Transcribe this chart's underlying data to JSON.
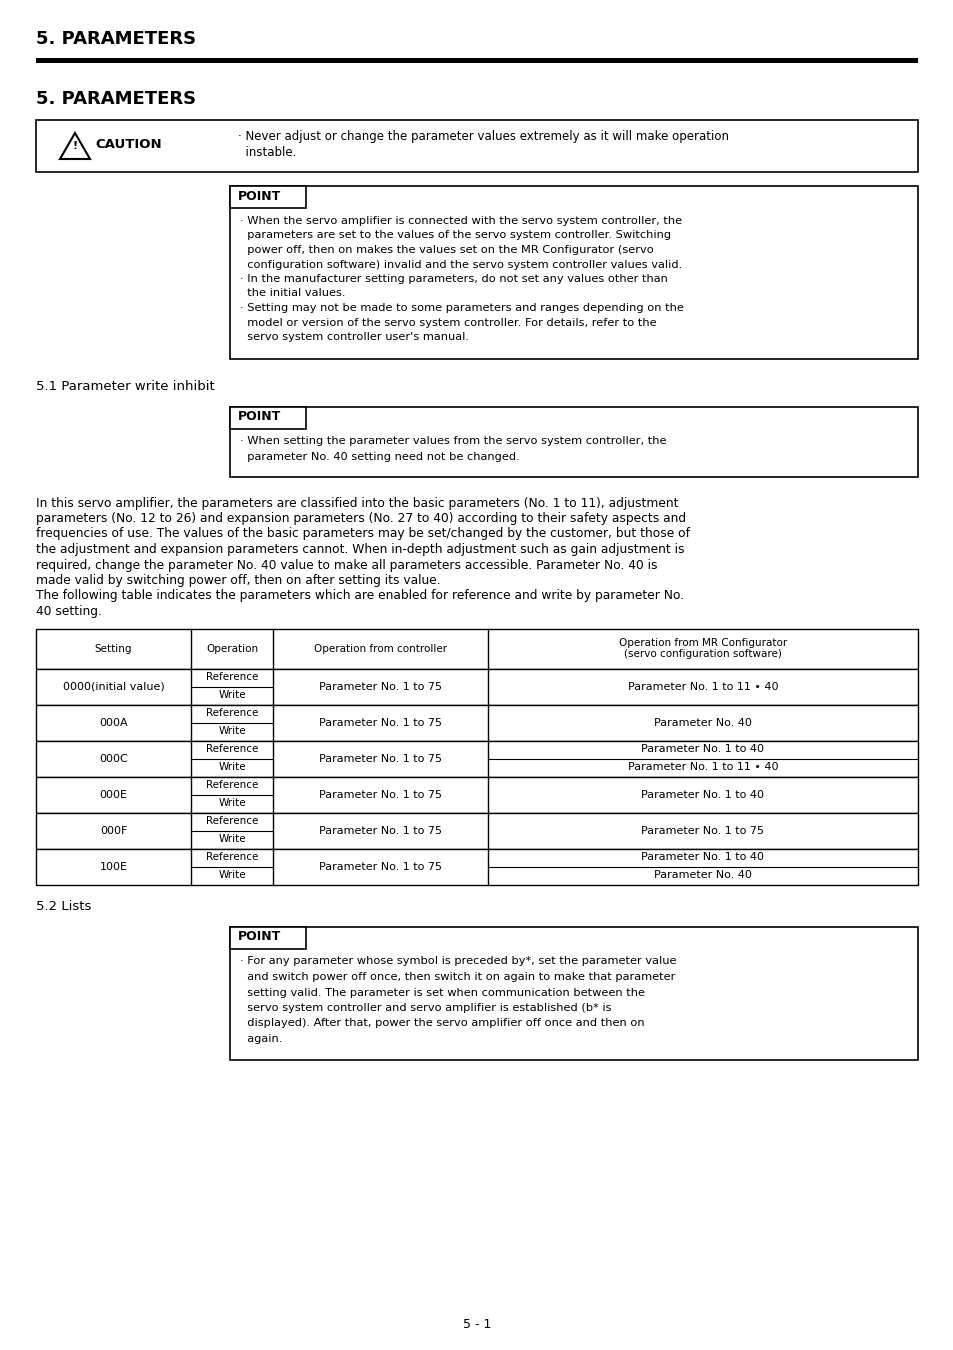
{
  "page_title": "5. PARAMETERS",
  "section_title": "5. PARAMETERS",
  "caution_text_line1": "· Never adjust or change the parameter values extremely as it will make operation",
  "caution_text_line2": "  instable.",
  "point1_lines": [
    "· When the servo amplifier is connected with the servo system controller, the",
    "  parameters are set to the values of the servo system controller. Switching",
    "  power off, then on makes the values set on the MR Configurator (servo",
    "  configuration software) invalid and the servo system controller values valid.",
    "· In the manufacturer setting parameters, do not set any values other than",
    "  the initial values.",
    "· Setting may not be made to some parameters and ranges depending on the",
    "  model or version of the servo system controller. For details, refer to the",
    "  servo system controller user's manual."
  ],
  "section_51": "5.1 Parameter write inhibit",
  "point2_lines": [
    "· When setting the parameter values from the servo system controller, the",
    "  parameter No. 40 setting need not be changed."
  ],
  "body_text": [
    "In this servo amplifier, the parameters are classified into the basic parameters (No. 1 to 11), adjustment",
    "parameters (No. 12 to 26) and expansion parameters (No. 27 to 40) according to their safety aspects and",
    "frequencies of use. The values of the basic parameters may be set/changed by the customer, but those of",
    "the adjustment and expansion parameters cannot. When in-depth adjustment such as gain adjustment is",
    "required, change the parameter No. 40 value to make all parameters accessible. Parameter No. 40 is",
    "made valid by switching power off, then on after setting its value.",
    "The following table indicates the parameters which are enabled for reference and write by parameter No.",
    "40 setting."
  ],
  "table_headers": [
    "Setting",
    "Operation",
    "Operation from controller",
    "Operation from MR Configurator\n(servo configuration software)"
  ],
  "table_rows": [
    [
      "0000(initial value)",
      "Reference\nWrite",
      "Parameter No. 1 to 75",
      "Parameter No. 1 to 11 • 40"
    ],
    [
      "000A",
      "Reference\nWrite",
      "Parameter No. 1 to 75",
      "Parameter No. 40"
    ],
    [
      "000C",
      "Reference\nWrite",
      "Parameter No. 1 to 75",
      "Parameter No. 1 to 40\nParameter No. 1 to 11 • 40"
    ],
    [
      "000E",
      "Reference\nWrite",
      "Parameter No. 1 to 75",
      "Parameter No. 1 to 40"
    ],
    [
      "000F",
      "Reference\nWrite",
      "Parameter No. 1 to 75",
      "Parameter No. 1 to 75"
    ],
    [
      "100E",
      "Reference\nWrite",
      "Parameter No. 1 to 75",
      "Parameter No. 1 to 40\nParameter No. 40"
    ]
  ],
  "section_52": "5.2 Lists",
  "point3_lines": [
    "· For any parameter whose symbol is preceded by*, set the parameter value",
    "  and switch power off once, then switch it on again to make that parameter",
    "  setting valid. The parameter is set when communication between the",
    "  servo system controller and servo amplifier is established (b* is",
    "  displayed). After that, power the servo amplifier off once and then on",
    "  again."
  ],
  "page_number": "5 - 1",
  "bg_color": "#ffffff",
  "text_color": "#000000"
}
